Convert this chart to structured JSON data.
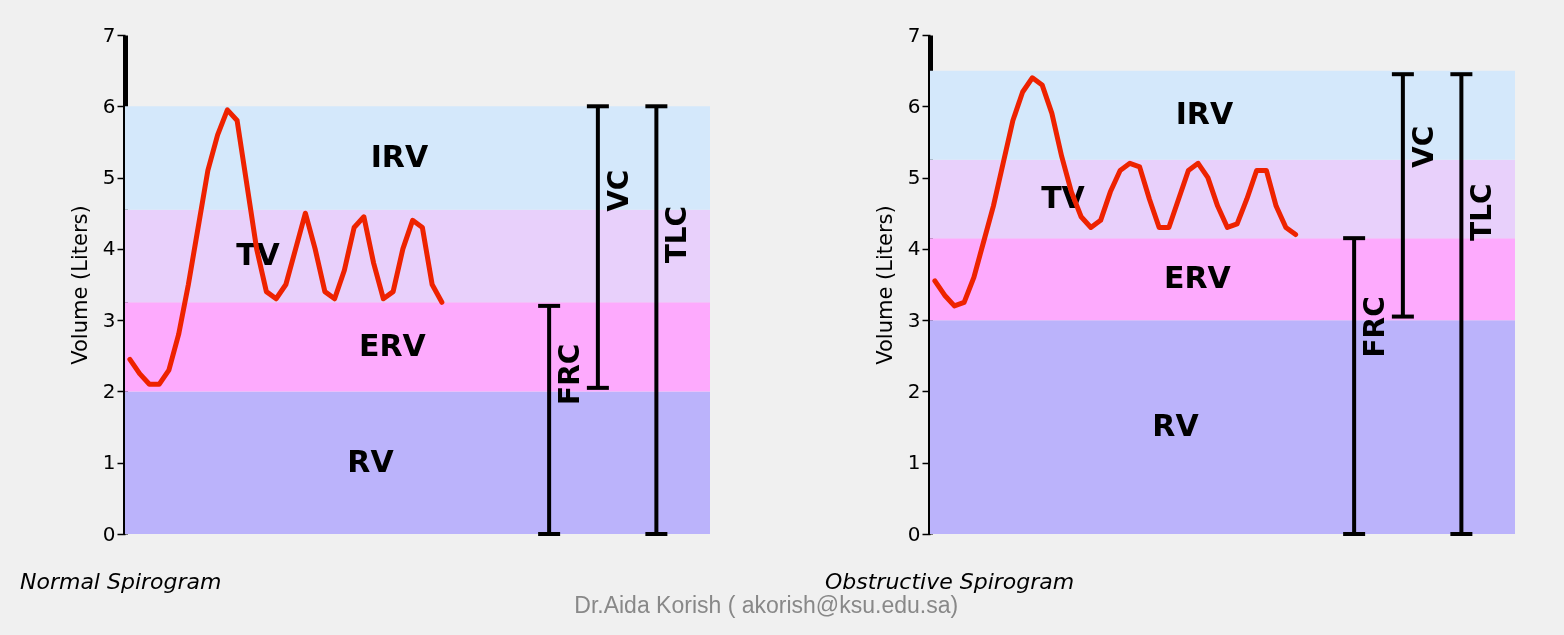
{
  "chart_data": [
    {
      "type": "line",
      "title": "Normal Spirogram",
      "ylabel": "Volume (Liters)",
      "tick_labels": "y",
      "grid": false,
      "categories": [
        null,
        null,
        null,
        null,
        null,
        null,
        null,
        null,
        null,
        null,
        null,
        null,
        null,
        null,
        null,
        null,
        null,
        null,
        null,
        null,
        null,
        null,
        null,
        null,
        null,
        null,
        null,
        null,
        null,
        null,
        null,
        null,
        null,
        null,
        null,
        null,
        null,
        null,
        null,
        null,
        null,
        null,
        null,
        null,
        null,
        null,
        null,
        null,
        null,
        null,
        null,
        null,
        null,
        null,
        null,
        null,
        null,
        null,
        null,
        null
      ],
      "ylim": [
        0,
        7
      ],
      "yticks": [
        0,
        1,
        2,
        3,
        4,
        5,
        6,
        7
      ],
      "bands": [
        {
          "axis": "y",
          "from": 0,
          "to": 2,
          "label": "RV",
          "color": "#bbb3fb"
        },
        {
          "axis": "y",
          "from": 2,
          "to": 3.25,
          "label": "ERV",
          "color": "#fdaafd"
        },
        {
          "axis": "y",
          "from": 3.25,
          "to": 4.55,
          "label": "TV",
          "color": "#e8d0fb"
        },
        {
          "axis": "y",
          "from": 4.55,
          "to": 6,
          "label": "IRV",
          "color": "#d4e8fb"
        }
      ],
      "series": [
        {
          "type": "line",
          "color": "#ee2200",
          "values": [
            2.45,
            2.25,
            2.1,
            2.1,
            2.3,
            2.8,
            3.5,
            4.3,
            5.1,
            5.6,
            5.95,
            5.8,
            4.9,
            4.0,
            3.4,
            3.3,
            3.5,
            4.0,
            4.5,
            4.0,
            3.4,
            3.3,
            3.7,
            4.3,
            4.45,
            3.8,
            3.3,
            3.4,
            4.0,
            4.4,
            4.3,
            3.5,
            3.25,
            null,
            null,
            null,
            null,
            null,
            null,
            null,
            null,
            null,
            null,
            null,
            null,
            null,
            null,
            null,
            null,
            null,
            null,
            null,
            null,
            null,
            null,
            null,
            null,
            null,
            null,
            null
          ]
        },
        {
          "type": "bar",
          "name": "FRC",
          "color": "#000000",
          "values": [
            null,
            null,
            null,
            null,
            null,
            null,
            null,
            null,
            null,
            null,
            null,
            null,
            null,
            null,
            null,
            null,
            null,
            null,
            null,
            null,
            null,
            null,
            null,
            null,
            null,
            null,
            null,
            null,
            null,
            null,
            null,
            null,
            null,
            null,
            null,
            null,
            null,
            null,
            null,
            null,
            null,
            null,
            null,
            3.2,
            null,
            null,
            null,
            null,
            null,
            null,
            null,
            null,
            null,
            null,
            null,
            null,
            null,
            null,
            null,
            null
          ],
          "base": [
            null,
            null,
            null,
            null,
            null,
            null,
            null,
            null,
            null,
            null,
            null,
            null,
            null,
            null,
            null,
            null,
            null,
            null,
            null,
            null,
            null,
            null,
            null,
            null,
            null,
            null,
            null,
            null,
            null,
            null,
            null,
            null,
            null,
            null,
            null,
            null,
            null,
            null,
            null,
            null,
            null,
            null,
            null,
            0,
            null,
            null,
            null,
            null,
            null,
            null,
            null,
            null,
            null,
            null,
            null,
            null,
            null,
            null,
            null,
            null
          ]
        },
        {
          "type": "bar",
          "name": "VC",
          "color": "#000000",
          "values": [
            null,
            null,
            null,
            null,
            null,
            null,
            null,
            null,
            null,
            null,
            null,
            null,
            null,
            null,
            null,
            null,
            null,
            null,
            null,
            null,
            null,
            null,
            null,
            null,
            null,
            null,
            null,
            null,
            null,
            null,
            null,
            null,
            null,
            null,
            null,
            null,
            null,
            null,
            null,
            null,
            null,
            null,
            null,
            null,
            null,
            null,
            null,
            null,
            3.95,
            null,
            null,
            null,
            null,
            null,
            null,
            null,
            null,
            null,
            null,
            null
          ],
          "base": [
            null,
            null,
            null,
            null,
            null,
            null,
            null,
            null,
            null,
            null,
            null,
            null,
            null,
            null,
            null,
            null,
            null,
            null,
            null,
            null,
            null,
            null,
            null,
            null,
            null,
            null,
            null,
            null,
            null,
            null,
            null,
            null,
            null,
            null,
            null,
            null,
            null,
            null,
            null,
            null,
            null,
            null,
            null,
            null,
            null,
            null,
            null,
            null,
            2.05,
            null,
            null,
            null,
            null,
            null,
            null,
            null,
            null,
            null,
            null,
            null
          ]
        },
        {
          "type": "bar",
          "name": "TLC",
          "color": "#000000",
          "values": [
            null,
            null,
            null,
            null,
            null,
            null,
            null,
            null,
            null,
            null,
            null,
            null,
            null,
            null,
            null,
            null,
            null,
            null,
            null,
            null,
            null,
            null,
            null,
            null,
            null,
            null,
            null,
            null,
            null,
            null,
            null,
            null,
            null,
            null,
            null,
            null,
            null,
            null,
            null,
            null,
            null,
            null,
            null,
            null,
            null,
            null,
            null,
            null,
            null,
            null,
            null,
            null,
            null,
            null,
            6.0,
            null,
            null,
            null,
            null,
            null
          ],
          "base": [
            null,
            null,
            null,
            null,
            null,
            null,
            null,
            null,
            null,
            null,
            null,
            null,
            null,
            null,
            null,
            null,
            null,
            null,
            null,
            null,
            null,
            null,
            null,
            null,
            null,
            null,
            null,
            null,
            null,
            null,
            null,
            null,
            null,
            null,
            null,
            null,
            null,
            null,
            null,
            null,
            null,
            null,
            null,
            null,
            null,
            null,
            null,
            null,
            null,
            null,
            null,
            null,
            null,
            null,
            0,
            null,
            null,
            null,
            null,
            null
          ]
        }
      ]
    },
    {
      "type": "line",
      "title": "Obstructive Spirogram",
      "ylabel": "Volume (Liters)",
      "tick_labels": "y",
      "grid": false,
      "annotations": [
        "Dr.Aida Korish  ( akorish@ksu.edu.sa)"
      ],
      "categories": [
        null,
        null,
        null,
        null,
        null,
        null,
        null,
        null,
        null,
        null,
        null,
        null,
        null,
        null,
        null,
        null,
        null,
        null,
        null,
        null,
        null,
        null,
        null,
        null,
        null,
        null,
        null,
        null,
        null,
        null,
        null,
        null,
        null,
        null,
        null,
        null,
        null,
        null,
        null,
        null,
        null,
        null,
        null,
        null,
        null,
        null,
        null,
        null,
        null,
        null,
        null,
        null,
        null,
        null,
        null,
        null,
        null,
        null,
        null,
        null
      ],
      "ylim": [
        0,
        7
      ],
      "yticks": [
        0,
        1,
        2,
        3,
        4,
        5,
        6,
        7
      ],
      "bands": [
        {
          "axis": "y",
          "from": 0,
          "to": 3,
          "label": "RV",
          "color": "#bbb3fb"
        },
        {
          "axis": "y",
          "from": 3,
          "to": 4.15,
          "label": "ERV",
          "color": "#fdaafd"
        },
        {
          "axis": "y",
          "from": 4.15,
          "to": 5.25,
          "label": "TV",
          "color": "#e8d0fb"
        },
        {
          "axis": "y",
          "from": 5.25,
          "to": 6.5,
          "label": "IRV",
          "color": "#d4e8fb"
        }
      ],
      "series": [
        {
          "type": "line",
          "color": "#ee2200",
          "values": [
            3.55,
            3.35,
            3.2,
            3.25,
            3.6,
            4.1,
            4.6,
            5.2,
            5.8,
            6.2,
            6.4,
            6.3,
            5.9,
            5.3,
            4.8,
            4.45,
            4.3,
            4.4,
            4.8,
            5.1,
            5.2,
            5.15,
            4.7,
            4.3,
            4.3,
            4.7,
            5.1,
            5.2,
            5.0,
            4.6,
            4.3,
            4.35,
            4.7,
            5.1,
            5.1,
            4.6,
            4.3,
            4.2,
            null,
            null,
            null,
            null,
            null,
            null,
            null,
            null,
            null,
            null,
            null,
            null,
            null,
            null,
            null,
            null,
            null,
            null,
            null,
            null,
            null,
            null
          ]
        },
        {
          "type": "bar",
          "name": "FRC",
          "color": "#000000",
          "values": [
            null,
            null,
            null,
            null,
            null,
            null,
            null,
            null,
            null,
            null,
            null,
            null,
            null,
            null,
            null,
            null,
            null,
            null,
            null,
            null,
            null,
            null,
            null,
            null,
            null,
            null,
            null,
            null,
            null,
            null,
            null,
            null,
            null,
            null,
            null,
            null,
            null,
            null,
            null,
            null,
            null,
            null,
            null,
            4.15,
            null,
            null,
            null,
            null,
            null,
            null,
            null,
            null,
            null,
            null,
            null,
            null,
            null,
            null,
            null,
            null
          ],
          "base": [
            null,
            null,
            null,
            null,
            null,
            null,
            null,
            null,
            null,
            null,
            null,
            null,
            null,
            null,
            null,
            null,
            null,
            null,
            null,
            null,
            null,
            null,
            null,
            null,
            null,
            null,
            null,
            null,
            null,
            null,
            null,
            null,
            null,
            null,
            null,
            null,
            null,
            null,
            null,
            null,
            null,
            null,
            null,
            0,
            null,
            null,
            null,
            null,
            null,
            null,
            null,
            null,
            null,
            null,
            null,
            null,
            null,
            null,
            null,
            null
          ]
        },
        {
          "type": "bar",
          "name": "VC",
          "color": "#000000",
          "values": [
            null,
            null,
            null,
            null,
            null,
            null,
            null,
            null,
            null,
            null,
            null,
            null,
            null,
            null,
            null,
            null,
            null,
            null,
            null,
            null,
            null,
            null,
            null,
            null,
            null,
            null,
            null,
            null,
            null,
            null,
            null,
            null,
            null,
            null,
            null,
            null,
            null,
            null,
            null,
            null,
            null,
            null,
            null,
            null,
            null,
            null,
            null,
            null,
            3.4,
            null,
            null,
            null,
            null,
            null,
            null,
            null,
            null,
            null,
            null,
            null
          ],
          "base": [
            null,
            null,
            null,
            null,
            null,
            null,
            null,
            null,
            null,
            null,
            null,
            null,
            null,
            null,
            null,
            null,
            null,
            null,
            null,
            null,
            null,
            null,
            null,
            null,
            null,
            null,
            null,
            null,
            null,
            null,
            null,
            null,
            null,
            null,
            null,
            null,
            null,
            null,
            null,
            null,
            null,
            null,
            null,
            null,
            null,
            null,
            null,
            null,
            3.05,
            null,
            null,
            null,
            null,
            null,
            null,
            null,
            null,
            null,
            null,
            null
          ]
        },
        {
          "type": "bar",
          "name": "TLC",
          "color": "#000000",
          "values": [
            null,
            null,
            null,
            null,
            null,
            null,
            null,
            null,
            null,
            null,
            null,
            null,
            null,
            null,
            null,
            null,
            null,
            null,
            null,
            null,
            null,
            null,
            null,
            null,
            null,
            null,
            null,
            null,
            null,
            null,
            null,
            null,
            null,
            null,
            null,
            null,
            null,
            null,
            null,
            null,
            null,
            null,
            null,
            null,
            null,
            null,
            null,
            null,
            null,
            null,
            null,
            null,
            null,
            null,
            6.45,
            null,
            null,
            null,
            null,
            null
          ],
          "base": [
            null,
            null,
            null,
            null,
            null,
            null,
            null,
            null,
            null,
            null,
            null,
            null,
            null,
            null,
            null,
            null,
            null,
            null,
            null,
            null,
            null,
            null,
            null,
            null,
            null,
            null,
            null,
            null,
            null,
            null,
            null,
            null,
            null,
            null,
            null,
            null,
            null,
            null,
            null,
            null,
            null,
            null,
            null,
            null,
            null,
            null,
            null,
            null,
            null,
            null,
            null,
            null,
            null,
            null,
            0,
            null,
            null,
            null,
            null,
            null
          ]
        }
      ]
    }
  ]
}
